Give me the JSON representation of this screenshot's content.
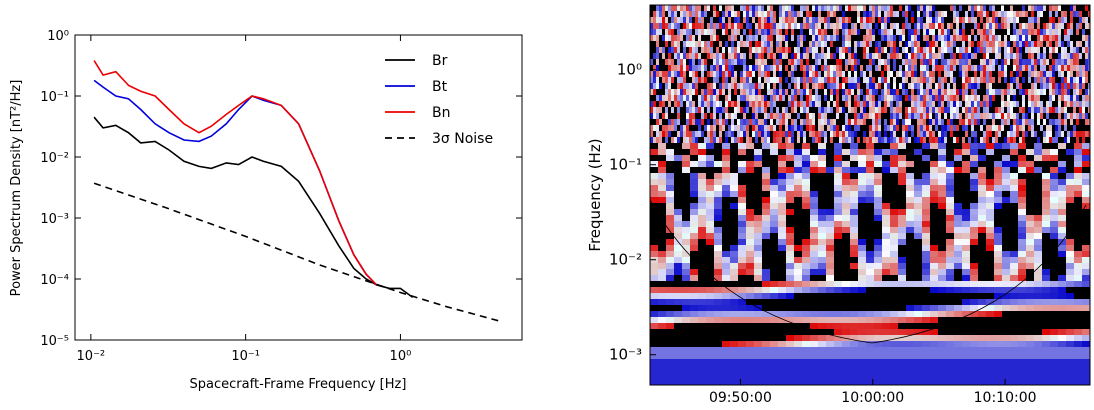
{
  "chart_data": [
    {
      "type": "line",
      "xlabel": "Spacecraft-Frame Frequency [Hz]",
      "ylabel": "Power Spectrum Density [nT²/Hz]",
      "log_x": true,
      "log_y": true,
      "xlim": [
        0.0079,
        6.1
      ],
      "ylim": [
        1e-05,
        1
      ],
      "xticks": [
        {
          "value": 0.01,
          "label": "10⁻²"
        },
        {
          "value": 0.1,
          "label": "10⁻¹"
        },
        {
          "value": 1,
          "label": "10⁰"
        }
      ],
      "yticks": [
        {
          "value": 1e-05,
          "label": "10⁻⁵"
        },
        {
          "value": 0.0001,
          "label": "10⁻⁴"
        },
        {
          "value": 0.001,
          "label": "10⁻³"
        },
        {
          "value": 0.01,
          "label": "10⁻²"
        },
        {
          "value": 0.1,
          "label": "10⁻¹"
        },
        {
          "value": 1,
          "label": "10⁰"
        }
      ],
      "legend": "upper right",
      "series": [
        {
          "name": "Br",
          "color": "#000000",
          "x": [
            0.0105,
            0.012,
            0.0145,
            0.0175,
            0.021,
            0.026,
            0.032,
            0.04,
            0.05,
            0.06,
            0.075,
            0.09,
            0.11,
            0.13,
            0.17,
            0.22,
            0.3,
            0.4,
            0.5,
            0.6,
            0.7,
            0.85,
            1.0,
            1.2
          ],
          "values": [
            0.045,
            0.03,
            0.033,
            0.025,
            0.017,
            0.018,
            0.013,
            0.0085,
            0.007,
            0.0065,
            0.008,
            0.0075,
            0.01,
            0.0085,
            0.007,
            0.004,
            0.0012,
            0.00035,
            0.00015,
            0.0001,
            8e-05,
            7e-05,
            7e-05,
            5e-05
          ]
        },
        {
          "name": "Bt",
          "color": "#0000dd",
          "x": [
            0.0105,
            0.012,
            0.0145,
            0.0175,
            0.021,
            0.026,
            0.032,
            0.04,
            0.05,
            0.06,
            0.075,
            0.09,
            0.11,
            0.13,
            0.17,
            0.22,
            0.3,
            0.4,
            0.5,
            0.6,
            0.7
          ],
          "values": [
            0.18,
            0.14,
            0.1,
            0.09,
            0.06,
            0.035,
            0.025,
            0.019,
            0.018,
            0.022,
            0.035,
            0.06,
            0.1,
            0.085,
            0.07,
            0.035,
            0.006,
            0.0009,
            0.00025,
            0.00012,
            8e-05
          ]
        },
        {
          "name": "Bn",
          "color": "#ee0000",
          "x": [
            0.0105,
            0.012,
            0.0145,
            0.0175,
            0.021,
            0.026,
            0.032,
            0.04,
            0.05,
            0.06,
            0.075,
            0.09,
            0.11,
            0.13,
            0.17,
            0.22,
            0.3,
            0.4,
            0.5,
            0.6,
            0.7
          ],
          "values": [
            0.38,
            0.22,
            0.25,
            0.15,
            0.12,
            0.1,
            0.06,
            0.035,
            0.025,
            0.032,
            0.05,
            0.07,
            0.1,
            0.09,
            0.07,
            0.035,
            0.006,
            0.0009,
            0.00025,
            0.00012,
            8e-05
          ]
        },
        {
          "name": "3σ Noise",
          "color": "#000000",
          "dashed": true,
          "x": [
            0.0105,
            0.03,
            0.1,
            0.3,
            1,
            2,
            4.5
          ],
          "values": [
            0.0037,
            0.0015,
            0.0005,
            0.00017,
            6e-05,
            3.5e-05,
            2e-05
          ]
        }
      ]
    },
    {
      "type": "spectrogram",
      "ylabel": "Frequency (Hz)",
      "log_y": true,
      "ylim": [
        0.00048,
        4.8
      ],
      "yticks": [
        {
          "value": 0.001,
          "label": "10⁻³"
        },
        {
          "value": 0.01,
          "label": "10⁻²"
        },
        {
          "value": 0.1,
          "label": "10⁻¹"
        },
        {
          "value": 1,
          "label": "10⁰"
        }
      ],
      "xlim": [
        "09:43:10",
        "10:16:25"
      ],
      "xticks": [
        "09:50:00",
        "10:00:00",
        "10:10:00"
      ]
    }
  ]
}
